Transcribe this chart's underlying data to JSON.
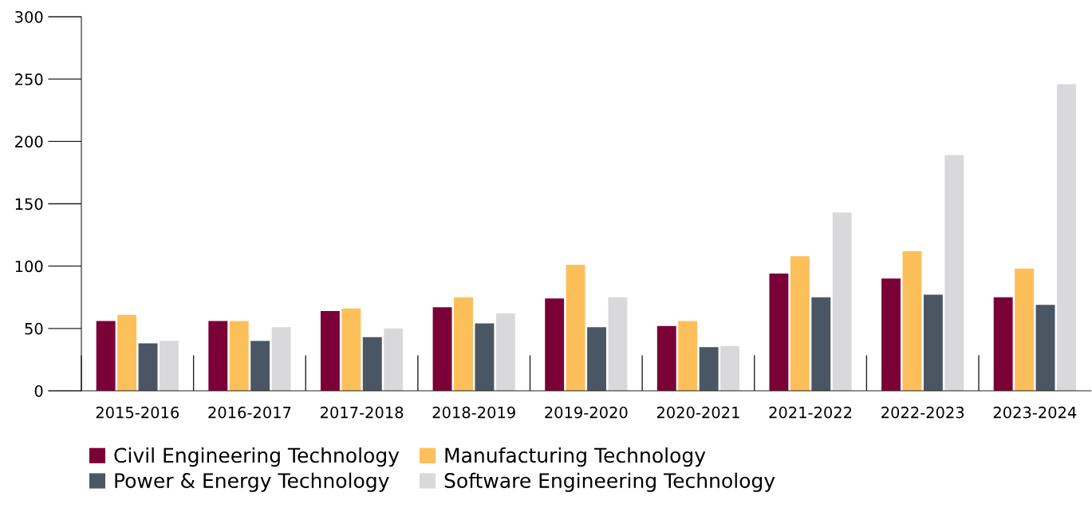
{
  "chart_data": {
    "type": "bar",
    "categories": [
      "2015-2016",
      "2016-2017",
      "2017-2018",
      "2018-2019",
      "2019-2020",
      "2020-2021",
      "2021-2022",
      "2022-2023",
      "2023-2024"
    ],
    "series": [
      {
        "name": "Civil Engineering Technology",
        "color": "#7a0037",
        "values": [
          56,
          56,
          64,
          67,
          74,
          52,
          94,
          90,
          75
        ]
      },
      {
        "name": "Manufacturing Technology",
        "color": "#fdbf5a",
        "values": [
          61,
          56,
          66,
          75,
          101,
          56,
          108,
          112,
          98
        ]
      },
      {
        "name": "Power & Energy Technology",
        "color": "#4a5663",
        "values": [
          38,
          40,
          43,
          54,
          51,
          35,
          75,
          77,
          69
        ]
      },
      {
        "name": "Software Engineering Technology",
        "color": "#d9d9db",
        "values": [
          40,
          51,
          50,
          62,
          75,
          36,
          143,
          189,
          246
        ]
      }
    ],
    "ylim": [
      0,
      300
    ],
    "yticks": [
      0,
      50,
      100,
      150,
      200,
      250,
      300
    ],
    "grid": false,
    "legend": "bottom left"
  }
}
